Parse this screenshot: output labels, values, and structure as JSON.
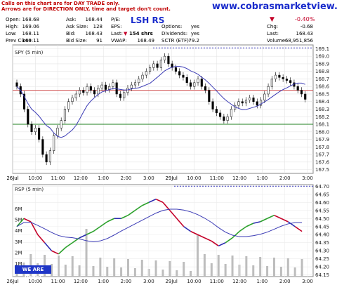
{
  "notice": {
    "line1": "Calls on this chart are for DAY TRADE only.",
    "line2": "Arrows are for DIRECTION ONLY, time and target don't count."
  },
  "site": "www.cobrasmarketview.com",
  "ticker_tag": "LSH RS",
  "stats": {
    "open_label": "Open:",
    "open": "168.68",
    "high_label": "High:",
    "high": "169.06",
    "low_label": "Low:",
    "low": "168.11",
    "prev_label": "Prev Close:",
    "prev": "169.11",
    "ask_label": "Ask:",
    "ask": "168.44",
    "asksize_label": "Ask Size:",
    "asksize": "128",
    "bid_label": "Bid:",
    "bid": "168.43",
    "bidsize_label": "Bid Size:",
    "bidsize": "91",
    "pe_label": "P/E:",
    "pe": "",
    "eps_label": "EPS:",
    "eps": "",
    "last_label": "Last:",
    "last_shrs": "154 shrs",
    "vwap_label": "VWAP:",
    "vwap": "168.49",
    "options_label": "Options:",
    "options": "yes",
    "dividends_label": "Dividends:",
    "dividends": "yes",
    "sctr_label": "SCTR (ETF):",
    "sctr": "79.2",
    "pct_change": "-0.40%",
    "chg_label": "Chg:",
    "chg": "-0.68",
    "last2_label": "Last:",
    "last2": "168.43",
    "volume_label": "Volume:",
    "volume": "68,951,856"
  },
  "colors": {
    "up": "#2aa02a",
    "down": "#c40028",
    "avg": "#3b3bb5",
    "red_line": "#d05050",
    "green_line": "#208020",
    "dotted": "#3a3ac0",
    "volume": "#bdbdbd"
  },
  "chart_data": [
    {
      "type": "candlestick",
      "title": "SPY (5 min)",
      "ylim": [
        167.45,
        169.15
      ],
      "yticks": [
        "169.1",
        "169.0",
        "168.9",
        "168.8",
        "168.7",
        "168.6",
        "168.5",
        "168.4",
        "168.3",
        "168.2",
        "168.1",
        "168.0",
        "167.9",
        "167.8",
        "167.7",
        "167.6",
        "167.5"
      ],
      "xticks": [
        "26Jul",
        "10:00",
        "11:00",
        "12:00",
        "1:00",
        "2:00",
        "3:00",
        "29Jul",
        "10:00",
        "11:00",
        "12:00",
        "1:00",
        "2:00",
        "3:00"
      ],
      "close": [
        168.6,
        168.5,
        168.3,
        168.1,
        168.0,
        168.05,
        167.9,
        167.7,
        167.6,
        167.75,
        167.95,
        168.05,
        168.15,
        168.3,
        168.4,
        168.45,
        168.5,
        168.55,
        168.52,
        168.6,
        168.55,
        168.5,
        168.58,
        168.62,
        168.56,
        168.6,
        168.65,
        168.5,
        168.45,
        168.52,
        168.58,
        168.62,
        168.65,
        168.7,
        168.75,
        168.8,
        168.85,
        168.9,
        168.85,
        168.95,
        169.0,
        168.9,
        168.85,
        168.8,
        168.75,
        168.72,
        168.65,
        168.6,
        168.65,
        168.7,
        168.6,
        168.55,
        168.4,
        168.3,
        168.25,
        168.2,
        168.15,
        168.2,
        168.3,
        168.35,
        168.4,
        168.38,
        168.42,
        168.45,
        168.4,
        168.35,
        168.42,
        168.5,
        168.6,
        168.7,
        168.75,
        168.72,
        168.7,
        168.68,
        168.65,
        168.6,
        168.55,
        168.5,
        168.43
      ],
      "horizontal_lines": [
        {
          "value": 168.55,
          "color": "red"
        },
        {
          "value": 168.1,
          "color": "green"
        },
        {
          "value": 169.11,
          "style": "dotted"
        }
      ]
    },
    {
      "type": "line",
      "title": "RSP (5 min)",
      "ylim": [
        64.14,
        64.71
      ],
      "yticks": [
        "64.70",
        "64.65",
        "64.60",
        "64.55",
        "64.50",
        "64.45",
        "64.40",
        "64.35",
        "64.30",
        "64.25",
        "64.20",
        "64.15"
      ],
      "volume_ticks": [
        "6M",
        "5M",
        "4M",
        "3M",
        "2M",
        "1M"
      ],
      "close": [
        64.45,
        64.5,
        64.48,
        64.4,
        64.35,
        64.3,
        64.28,
        64.32,
        64.35,
        64.38,
        64.4,
        64.42,
        64.45,
        64.48,
        64.5,
        64.5,
        64.52,
        64.55,
        64.58,
        64.6,
        64.62,
        64.6,
        64.55,
        64.5,
        64.45,
        64.42,
        64.4,
        64.38,
        64.36,
        64.33,
        64.35,
        64.38,
        64.42,
        64.45,
        64.47,
        64.48,
        64.5,
        64.52,
        64.5,
        64.48,
        64.45,
        64.42
      ],
      "horizontal_lines": [
        {
          "value": 64.7,
          "style": "dotted"
        }
      ]
    }
  ]
}
